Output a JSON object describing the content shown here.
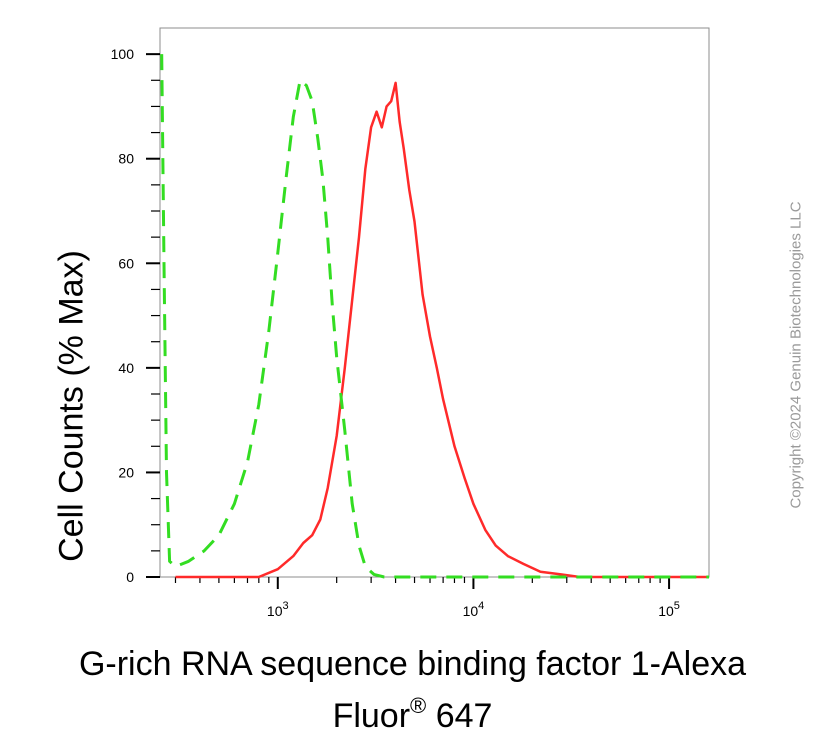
{
  "chart_data": {
    "type": "line",
    "xscale": "log",
    "xlim": [
      250,
      160000
    ],
    "ylim": [
      0,
      105
    ],
    "ylabel": "Cell Counts (% Max)",
    "xlabel_line1": "G-rich RNA sequence binding factor 1-Alexa",
    "xlabel_line2_main": "Fluor",
    "xlabel_line2_sup": "®",
    "xlabel_line2_tail": " 647",
    "y_ticks": [
      0,
      20,
      40,
      60,
      80,
      100
    ],
    "y_tick_labels": [
      "0",
      "20",
      "40",
      "60",
      "80",
      "100"
    ],
    "x_ticks": [
      {
        "value": 1000,
        "base": "10",
        "exp": "3"
      },
      {
        "value": 10000,
        "base": "10",
        "exp": "4"
      },
      {
        "value": 100000,
        "base": "10",
        "exp": "5"
      }
    ],
    "series": [
      {
        "color": "#ff2a2a",
        "style": "solid",
        "points": [
          [
            300,
            0
          ],
          [
            800,
            0
          ],
          [
            1000,
            1.5
          ],
          [
            1200,
            4
          ],
          [
            1350,
            6.5
          ],
          [
            1500,
            8
          ],
          [
            1650,
            11
          ],
          [
            1800,
            17
          ],
          [
            2000,
            27
          ],
          [
            2200,
            40
          ],
          [
            2400,
            53
          ],
          [
            2600,
            65
          ],
          [
            2800,
            78
          ],
          [
            3000,
            86
          ],
          [
            3200,
            89
          ],
          [
            3400,
            86
          ],
          [
            3600,
            90
          ],
          [
            3800,
            91
          ],
          [
            4000,
            94.5
          ],
          [
            4200,
            87
          ],
          [
            4400,
            82
          ],
          [
            4700,
            74
          ],
          [
            5000,
            68
          ],
          [
            5500,
            54
          ],
          [
            6000,
            46
          ],
          [
            6500,
            40
          ],
          [
            7000,
            34
          ],
          [
            8000,
            25
          ],
          [
            9000,
            19
          ],
          [
            10000,
            14
          ],
          [
            11500,
            9
          ],
          [
            13000,
            6
          ],
          [
            15000,
            4
          ],
          [
            18000,
            2.5
          ],
          [
            22000,
            1
          ],
          [
            28000,
            0.5
          ],
          [
            35000,
            0
          ],
          [
            160000,
            0
          ]
        ]
      },
      {
        "color": "#33dd22",
        "style": "dashed",
        "points": [
          [
            255,
            100
          ],
          [
            262,
            60
          ],
          [
            270,
            20
          ],
          [
            280,
            3
          ],
          [
            300,
            2
          ],
          [
            350,
            3
          ],
          [
            420,
            5
          ],
          [
            500,
            8
          ],
          [
            600,
            14
          ],
          [
            700,
            22
          ],
          [
            800,
            33
          ],
          [
            900,
            47
          ],
          [
            1000,
            62
          ],
          [
            1100,
            76
          ],
          [
            1200,
            88
          ],
          [
            1300,
            95
          ],
          [
            1400,
            94
          ],
          [
            1500,
            91
          ],
          [
            1600,
            84
          ],
          [
            1700,
            76
          ],
          [
            1800,
            65
          ],
          [
            1900,
            52
          ],
          [
            2000,
            42
          ],
          [
            2200,
            28
          ],
          [
            2400,
            14
          ],
          [
            2600,
            6
          ],
          [
            2800,
            2
          ],
          [
            3100,
            0.5
          ],
          [
            3500,
            0
          ],
          [
            160000,
            0
          ]
        ]
      }
    ]
  },
  "copyright": "Copyright ©2024 Genuin Biotechnologies LLC"
}
